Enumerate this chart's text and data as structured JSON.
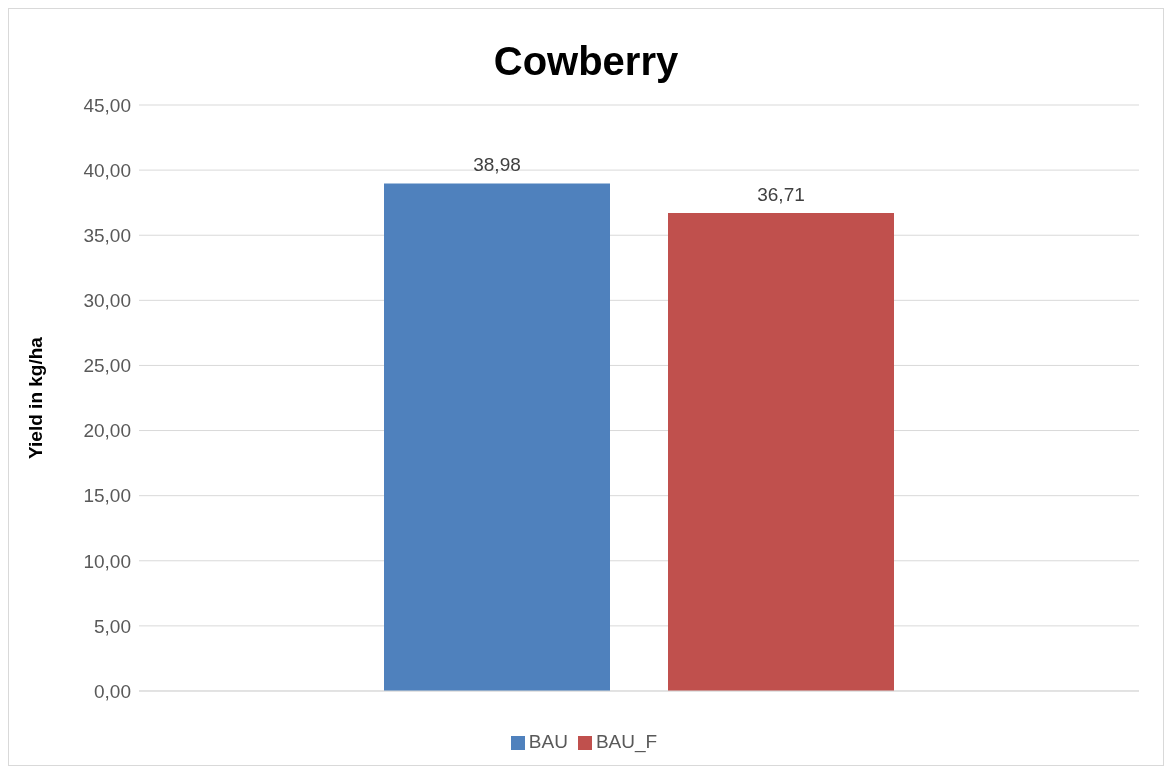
{
  "chart_data": {
    "type": "bar",
    "title": "Cowberry",
    "ylabel": "Yield in kg/ha",
    "categories": [
      null
    ],
    "series": [
      {
        "name": "BAU",
        "color": "#4f81bd",
        "values": [
          38.98
        ],
        "value_labels": [
          "38,98"
        ]
      },
      {
        "name": "BAU_F",
        "color": "#c0504d",
        "values": [
          36.71
        ],
        "value_labels": [
          "36,71"
        ]
      }
    ],
    "ylim": [
      0,
      45
    ],
    "yticks": [
      {
        "value": 0,
        "label": "0,00"
      },
      {
        "value": 5,
        "label": "5,00"
      },
      {
        "value": 10,
        "label": "10,00"
      },
      {
        "value": 15,
        "label": "15,00"
      },
      {
        "value": 20,
        "label": "20,00"
      },
      {
        "value": 25,
        "label": "25,00"
      },
      {
        "value": 30,
        "label": "30,00"
      },
      {
        "value": 35,
        "label": "35,00"
      },
      {
        "value": 40,
        "label": "40,00"
      },
      {
        "value": 45,
        "label": "45,00"
      }
    ],
    "grid": "y",
    "legend": "bottom"
  }
}
